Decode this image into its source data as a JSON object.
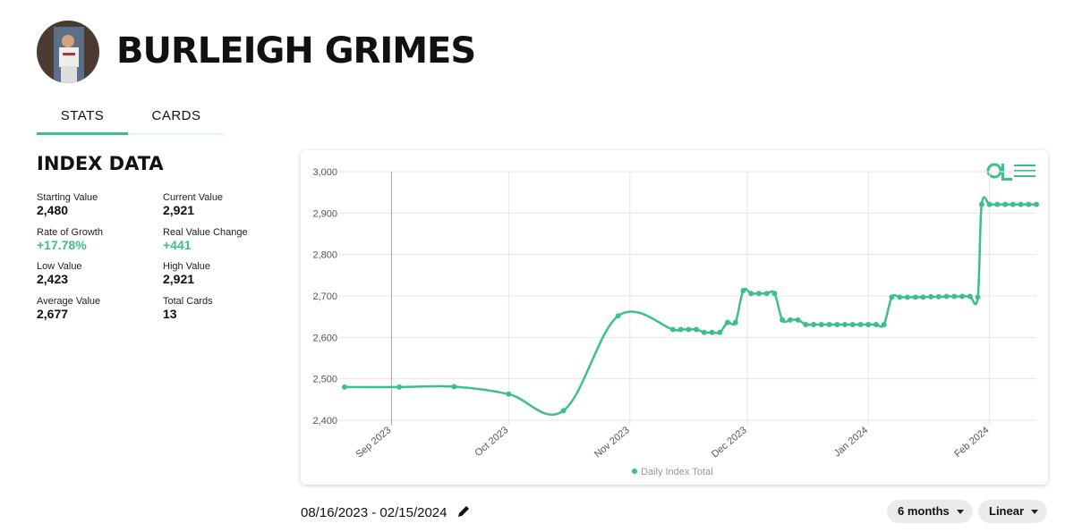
{
  "header": {
    "title": "BURLEIGH GRIMES"
  },
  "tabs": [
    "STATS",
    "CARDS"
  ],
  "index_data": {
    "title": "INDEX DATA",
    "stats": [
      {
        "label": "Starting Value",
        "value": "2,480"
      },
      {
        "label": "Current Value",
        "value": "2,921"
      },
      {
        "label": "Rate of Growth",
        "value": "+17.78%"
      },
      {
        "label": "Real Value Change",
        "value": "+441"
      },
      {
        "label": "Low Value",
        "value": "2,423"
      },
      {
        "label": "High Value",
        "value": "2,921"
      },
      {
        "label": "Average Value",
        "value": "2,677"
      },
      {
        "label": "Total Cards",
        "value": "13"
      }
    ]
  },
  "chart_data": {
    "type": "line",
    "legend": "bottom",
    "grid": true,
    "x": [
      "2023-08-20",
      "2023-09-03",
      "2023-09-17",
      "2023-10-01",
      "2023-10-15",
      "2023-10-29",
      "2023-11-12",
      "2023-11-14",
      "2023-11-16",
      "2023-11-18",
      "2023-11-20",
      "2023-11-22",
      "2023-11-24",
      "2023-11-26",
      "2023-11-28",
      "2023-11-30",
      "2023-12-02",
      "2023-12-04",
      "2023-12-06",
      "2023-12-08",
      "2023-12-10",
      "2023-12-12",
      "2023-12-14",
      "2023-12-16",
      "2023-12-18",
      "2023-12-20",
      "2023-12-22",
      "2023-12-24",
      "2023-12-26",
      "2023-12-28",
      "2023-12-30",
      "2024-01-01",
      "2024-01-03",
      "2024-01-05",
      "2024-01-07",
      "2024-01-09",
      "2024-01-11",
      "2024-01-13",
      "2024-01-15",
      "2024-01-17",
      "2024-01-19",
      "2024-01-21",
      "2024-01-23",
      "2024-01-25",
      "2024-01-27",
      "2024-01-29",
      "2024-01-30",
      "2024-02-01",
      "2024-02-03",
      "2024-02-05",
      "2024-02-07",
      "2024-02-09",
      "2024-02-11",
      "2024-02-13"
    ],
    "series": [
      {
        "name": "Daily Index Total",
        "color": "#3dbf8c",
        "values": [
          2480,
          2480,
          2481,
          2463,
          2423,
          2652,
          2619,
          2619,
          2619,
          2619,
          2612,
          2612,
          2612,
          2636,
          2636,
          2713,
          2706,
          2706,
          2706,
          2706,
          2642,
          2642,
          2642,
          2631,
          2631,
          2631,
          2631,
          2631,
          2631,
          2631,
          2631,
          2631,
          2631,
          2631,
          2697,
          2697,
          2697,
          2697,
          2697,
          2698,
          2698,
          2699,
          2699,
          2699,
          2699,
          2697,
          2921,
          2921,
          2921,
          2921,
          2921,
          2921,
          2921,
          2921
        ]
      }
    ],
    "xlim": [
      "2023-08-20",
      "2024-02-13"
    ],
    "xticks": [
      {
        "value": "2023-09-01",
        "label": "Sep 2023"
      },
      {
        "value": "2023-10-01",
        "label": "Oct 2023"
      },
      {
        "value": "2023-11-01",
        "label": "Nov 2023"
      },
      {
        "value": "2023-12-01",
        "label": "Dec 2023"
      },
      {
        "value": "2024-01-01",
        "label": "Jan 2024"
      },
      {
        "value": "2024-02-01",
        "label": "Feb 2024"
      }
    ],
    "ylim": [
      2400,
      3000
    ],
    "yticks": [
      {
        "value": 2400,
        "label": "2,400"
      },
      {
        "value": 2500,
        "label": "2,500"
      },
      {
        "value": 2600,
        "label": "2,600"
      },
      {
        "value": 2700,
        "label": "2,700"
      },
      {
        "value": 2800,
        "label": "2,800"
      },
      {
        "value": 2900,
        "label": "2,900"
      },
      {
        "value": 3000,
        "label": "3,000"
      }
    ]
  },
  "date_range": "08/16/2023 - 02/15/2024",
  "controls": [
    "6 months",
    "Linear"
  ]
}
